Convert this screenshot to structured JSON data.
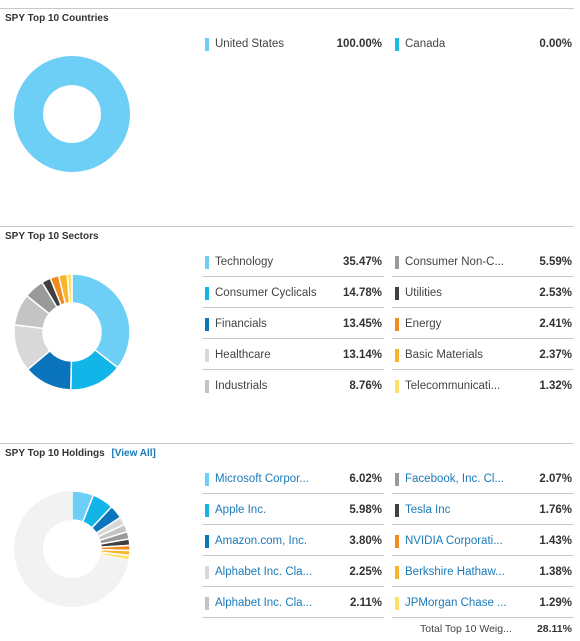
{
  "chart_data": [
    {
      "type": "pie",
      "title": "SPY Top 10 Countries",
      "categories": [
        "United States",
        "Canada"
      ],
      "values": [
        100.0,
        0.0
      ],
      "value_labels": [
        "100.00%",
        "0.00%"
      ],
      "colors": [
        "#6dcff6",
        "#1bbbe0"
      ]
    },
    {
      "type": "pie",
      "title": "SPY Top 10 Sectors",
      "categories": [
        "Technology",
        "Consumer Cyclicals",
        "Financials",
        "Healthcare",
        "Industrials",
        "Consumer Non-C...",
        "Utilities",
        "Energy",
        "Basic Materials",
        "Telecommunicati..."
      ],
      "values": [
        35.47,
        14.78,
        13.45,
        13.14,
        8.76,
        5.59,
        2.53,
        2.41,
        2.37,
        1.32
      ],
      "value_labels": [
        "35.47%",
        "14.78%",
        "13.45%",
        "13.14%",
        "8.76%",
        "5.59%",
        "2.53%",
        "2.41%",
        "2.37%",
        "1.32%"
      ],
      "colors": [
        "#6dcff6",
        "#12b5e8",
        "#0a74bd",
        "#d8d8d8",
        "#c4c4c4",
        "#9a9a9a",
        "#404040",
        "#f28c1e",
        "#f7b52b",
        "#ffe066"
      ]
    },
    {
      "type": "pie",
      "title": "SPY Top 10 Holdings",
      "categories": [
        "Microsoft Corpor...",
        "Apple Inc.",
        "Amazon.com, Inc.",
        "Alphabet Inc. Cla...",
        "Alphabet Inc. Cla...",
        "Facebook, Inc. Cl...",
        "Tesla Inc",
        "NVIDIA Corporati...",
        "Berkshire Hathaw...",
        "JPMorgan Chase ..."
      ],
      "values": [
        6.02,
        5.98,
        3.8,
        2.25,
        2.11,
        2.07,
        1.76,
        1.43,
        1.38,
        1.29
      ],
      "value_labels": [
        "6.02%",
        "5.98%",
        "3.80%",
        "2.25%",
        "2.11%",
        "2.07%",
        "1.76%",
        "1.43%",
        "1.38%",
        "1.29%"
      ],
      "colors": [
        "#6dcff6",
        "#12b5e8",
        "#0a74bd",
        "#d8d8d8",
        "#c4c4c4",
        "#9a9a9a",
        "#404040",
        "#f28c1e",
        "#f7b52b",
        "#ffe066"
      ],
      "other_color": "#f2f2f2",
      "total_label": "Total Top 10 Weig...",
      "total_value": "28.11%"
    }
  ],
  "holdings_view_all": "[View All]"
}
